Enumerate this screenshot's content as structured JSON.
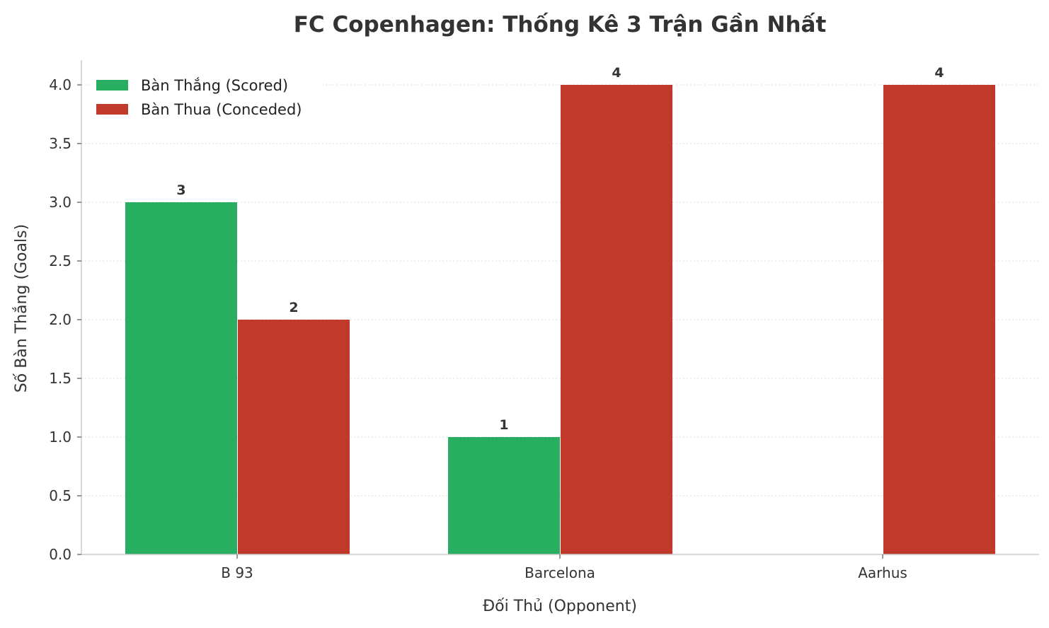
{
  "chart_data": {
    "type": "bar",
    "title": "FC Copenhagen: Thống Kê 3 Trận Gần Nhất",
    "xlabel": "Đối Thủ (Opponent)",
    "ylabel": "Số Bàn Thắng (Goals)",
    "categories": [
      "B 93",
      "Barcelona",
      "Aarhus"
    ],
    "series": [
      {
        "name": "Bàn Thắng (Scored)",
        "values": [
          3,
          1,
          0
        ],
        "color": "#27ae60"
      },
      {
        "name": "Bàn Thua (Conceded)",
        "values": [
          2,
          4,
          4
        ],
        "color": "#c0392b"
      }
    ],
    "ylim": [
      0,
      4.2
    ],
    "yticks": [
      "0.0",
      "0.5",
      "1.0",
      "1.5",
      "2.0",
      "2.5",
      "3.0",
      "3.5",
      "4.0"
    ],
    "grid": "horizontal dotted",
    "legend": "top-left",
    "data_labels": true
  }
}
